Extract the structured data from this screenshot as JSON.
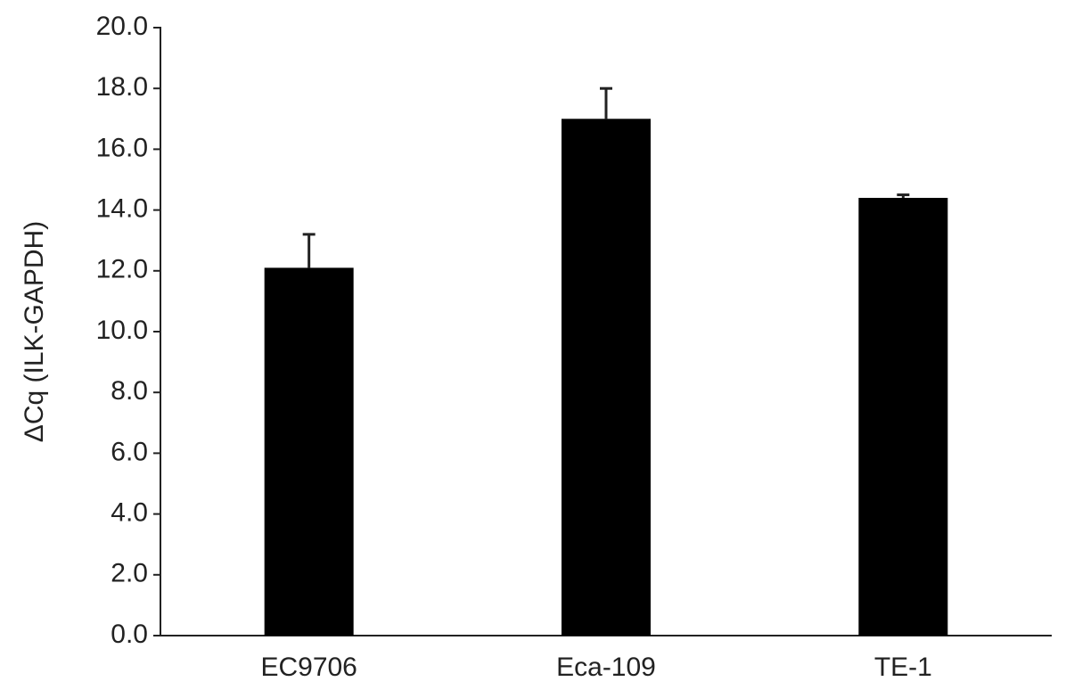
{
  "chart_data": {
    "type": "bar",
    "y_label": "ΔCq (ILK-GAPDH)",
    "categories": [
      "EC9706",
      "Eca-109",
      "TE-1"
    ],
    "values": [
      12.1,
      17.0,
      14.4
    ],
    "errors": [
      1.1,
      1.0,
      0.1
    ],
    "color": "#000000",
    "ylim": [
      0,
      20
    ],
    "yticks": [
      {
        "value": 0,
        "label": "0.0"
      },
      {
        "value": 2,
        "label": "2.0"
      },
      {
        "value": 4,
        "label": "4.0"
      },
      {
        "value": 6,
        "label": "6.0"
      },
      {
        "value": 8,
        "label": "8.0"
      },
      {
        "value": 10,
        "label": "10.0"
      },
      {
        "value": 12,
        "label": "12.0"
      },
      {
        "value": 14,
        "label": "14.0"
      },
      {
        "value": 16,
        "label": "16.0"
      },
      {
        "value": 18,
        "label": "18.0"
      },
      {
        "value": 20,
        "label": "20.0"
      }
    ],
    "grid": false
  }
}
